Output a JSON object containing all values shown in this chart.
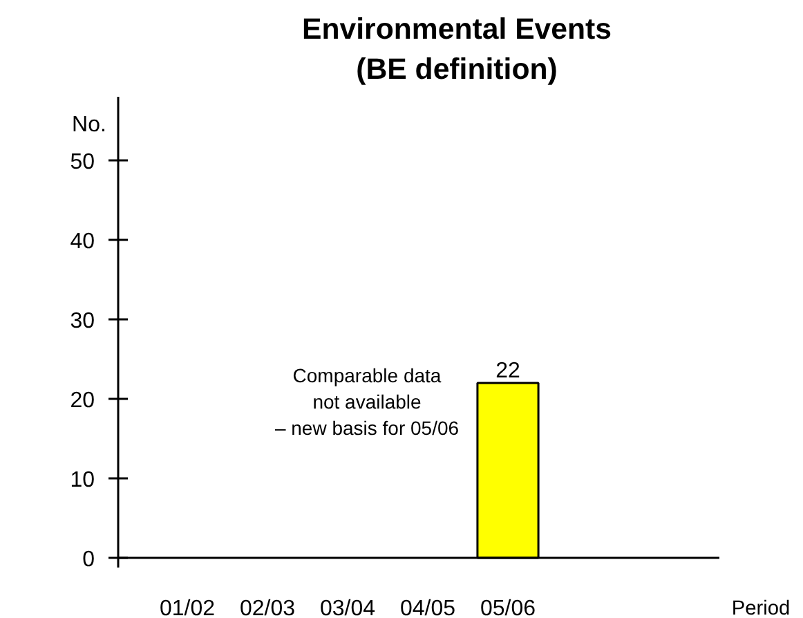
{
  "chart_data": {
    "type": "bar",
    "title": "Environmental Events\n(BE definition)",
    "ylabel": "No.",
    "categories": [
      "01/02",
      "02/03",
      "03/04",
      "04/05",
      "05/06"
    ],
    "values": [
      null,
      null,
      null,
      null,
      22
    ],
    "color": "#ffff00",
    "data_labels": true,
    "ylim": [
      0,
      58
    ],
    "yticks": [
      0,
      10,
      20,
      30,
      40,
      50
    ],
    "grid": false,
    "annotations": [
      "Comparable data\nnot available\n– new basis for 05/06",
      "Period"
    ]
  }
}
